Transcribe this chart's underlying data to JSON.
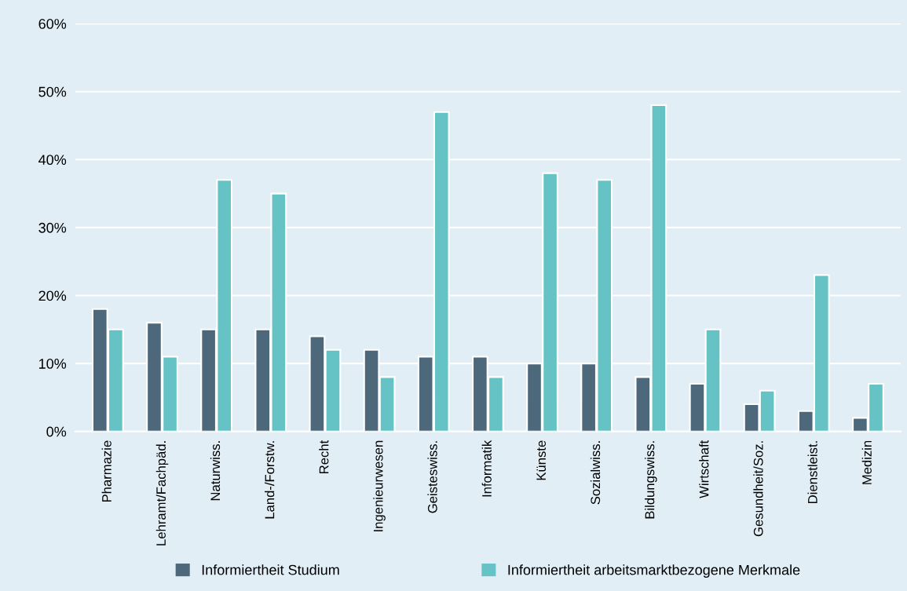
{
  "chart_data": {
    "type": "bar",
    "categories": [
      "Pharmazie",
      "Lehramt/Fachpäd.",
      "Naturwiss.",
      "Land-/Forstw.",
      "Recht",
      "Ingenieurwesen",
      "Geisteswiss.",
      "Informatik",
      "Künste",
      "Sozialwiss.",
      "Bildungswiss.",
      "Wirtschaft",
      "Gesundheit/Soz.",
      "Dienstleist.",
      "Medizin"
    ],
    "series": [
      {
        "name": "Informiertheit Studium",
        "color": "#4e687b",
        "values": [
          18,
          16,
          15,
          15,
          14,
          12,
          11,
          11,
          10,
          10,
          8,
          7,
          4,
          3,
          2
        ]
      },
      {
        "name": "Informiertheit arbeitsmarktbezogene Merkmale",
        "color": "#66c3c5",
        "values": [
          15,
          11,
          37,
          35,
          12,
          8,
          47,
          8,
          38,
          37,
          48,
          15,
          6,
          23,
          7
        ]
      }
    ],
    "ylim": [
      0,
      60
    ],
    "yticks": [
      {
        "value": 0,
        "label": "0%"
      },
      {
        "value": 10,
        "label": "10%"
      },
      {
        "value": 20,
        "label": "20%"
      },
      {
        "value": 30,
        "label": "30%"
      },
      {
        "value": 40,
        "label": "40%"
      },
      {
        "value": 50,
        "label": "50%"
      },
      {
        "value": 60,
        "label": "60%"
      }
    ],
    "grid": "y",
    "legend": "bottom"
  }
}
